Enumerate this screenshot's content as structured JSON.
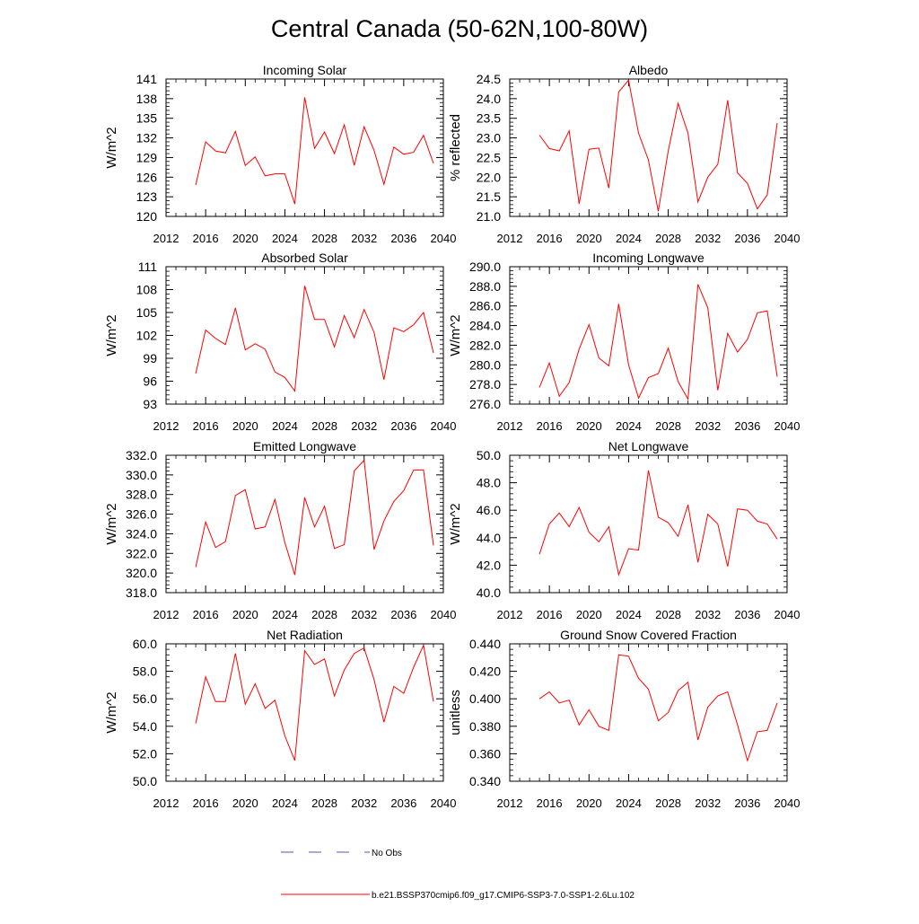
{
  "figure": {
    "title": "Central Canada (50-62N,100-80W)",
    "legend": [
      {
        "label": "No Obs",
        "color": "#5555aa",
        "style": "dashed"
      },
      {
        "label": "b.e21.BSSP370cmip6.f09_g17.CMIP6-SSP3-7.0-SSP1-2.6Lu.102",
        "color": "#ff0000",
        "style": "solid"
      }
    ]
  },
  "chart_data": [
    {
      "type": "line",
      "title": "Incoming Solar",
      "ylabel": "W/m^2",
      "xlim": [
        2012,
        2040
      ],
      "ylim": [
        120,
        141
      ],
      "xticks": [
        2012,
        2016,
        2020,
        2024,
        2028,
        2032,
        2036,
        2040
      ],
      "yticks": [
        120,
        123,
        126,
        129,
        132,
        135,
        138,
        141
      ],
      "ytick_labels": [
        "120",
        "123",
        "126",
        "129",
        "132",
        "135",
        "138",
        "141"
      ],
      "x": [
        2015,
        2016,
        2017,
        2018,
        2019,
        2020,
        2021,
        2022,
        2023,
        2024,
        2025,
        2026,
        2027,
        2028,
        2029,
        2030,
        2031,
        2032,
        2033,
        2034,
        2035,
        2036,
        2037,
        2038,
        2039
      ],
      "series": [
        {
          "color": "#ff0000",
          "values": [
            124.8,
            131.4,
            130.0,
            129.7,
            133.0,
            127.8,
            129.1,
            126.2,
            126.5,
            126.5,
            121.9,
            138.2,
            130.4,
            132.9,
            129.6,
            134.0,
            127.8,
            133.7,
            130.1,
            124.9,
            130.6,
            129.5,
            129.8,
            132.4,
            128.1
          ]
        }
      ]
    },
    {
      "type": "line",
      "title": "Albedo",
      "ylabel": "% reflected",
      "xlim": [
        2012,
        2040
      ],
      "ylim": [
        21.0,
        24.5
      ],
      "xticks": [
        2012,
        2016,
        2020,
        2024,
        2028,
        2032,
        2036,
        2040
      ],
      "yticks": [
        21.0,
        21.5,
        22.0,
        22.5,
        23.0,
        23.5,
        24.0,
        24.5
      ],
      "ytick_labels": [
        "21.0",
        "21.5",
        "22.0",
        "22.5",
        "23.0",
        "23.5",
        "24.0",
        "24.5"
      ],
      "x": [
        2015,
        2016,
        2017,
        2018,
        2019,
        2020,
        2021,
        2022,
        2023,
        2024,
        2025,
        2026,
        2027,
        2028,
        2029,
        2030,
        2031,
        2032,
        2033,
        2034,
        2035,
        2036,
        2037,
        2038,
        2039
      ],
      "series": [
        {
          "color": "#ff0000",
          "values": [
            23.07,
            22.73,
            22.67,
            23.18,
            21.32,
            22.71,
            22.74,
            21.72,
            24.17,
            24.47,
            23.12,
            22.44,
            21.13,
            22.67,
            23.88,
            23.12,
            21.37,
            22.0,
            22.33,
            23.96,
            22.11,
            21.84,
            21.19,
            21.55,
            23.38
          ]
        }
      ]
    },
    {
      "type": "line",
      "title": "Absorbed Solar",
      "ylabel": "W/m^2",
      "xlim": [
        2012,
        2040
      ],
      "ylim": [
        93,
        111
      ],
      "xticks": [
        2012,
        2016,
        2020,
        2024,
        2028,
        2032,
        2036,
        2040
      ],
      "yticks": [
        93,
        96,
        99,
        102,
        105,
        108,
        111
      ],
      "ytick_labels": [
        "93",
        "96",
        "99",
        "102",
        "105",
        "108",
        "111"
      ],
      "x": [
        2015,
        2016,
        2017,
        2018,
        2019,
        2020,
        2021,
        2022,
        2023,
        2024,
        2025,
        2026,
        2027,
        2028,
        2029,
        2030,
        2031,
        2032,
        2033,
        2034,
        2035,
        2036,
        2037,
        2038,
        2039
      ],
      "series": [
        {
          "color": "#ff0000",
          "values": [
            97.0,
            102.7,
            101.6,
            100.8,
            105.6,
            100.1,
            100.9,
            100.2,
            97.2,
            96.5,
            94.7,
            108.5,
            104.1,
            104.1,
            100.5,
            104.6,
            101.7,
            105.4,
            102.4,
            96.2,
            103.0,
            102.5,
            103.4,
            105.0,
            99.7
          ]
        }
      ]
    },
    {
      "type": "line",
      "title": "Incoming Longwave",
      "ylabel": "W/m^2",
      "xlim": [
        2012,
        2040
      ],
      "ylim": [
        276.0,
        290.0
      ],
      "xticks": [
        2012,
        2016,
        2020,
        2024,
        2028,
        2032,
        2036,
        2040
      ],
      "yticks": [
        276.0,
        278.0,
        280.0,
        282.0,
        284.0,
        286.0,
        288.0,
        290.0
      ],
      "ytick_labels": [
        "276.0",
        "278.0",
        "280.0",
        "282.0",
        "284.0",
        "286.0",
        "288.0",
        "290.0"
      ],
      "x": [
        2015,
        2016,
        2017,
        2018,
        2019,
        2020,
        2021,
        2022,
        2023,
        2024,
        2025,
        2026,
        2027,
        2028,
        2029,
        2030,
        2031,
        2032,
        2033,
        2034,
        2035,
        2036,
        2037,
        2038,
        2039
      ],
      "series": [
        {
          "color": "#ff0000",
          "values": [
            277.7,
            280.2,
            276.8,
            278.2,
            281.6,
            284.1,
            280.7,
            279.9,
            286.2,
            280.0,
            276.6,
            278.7,
            279.1,
            281.7,
            278.3,
            276.5,
            288.2,
            285.8,
            277.4,
            283.2,
            281.3,
            282.6,
            285.3,
            285.5,
            278.8
          ]
        }
      ]
    },
    {
      "type": "line",
      "title": "Emitted Longwave",
      "ylabel": "W/m^2",
      "xlim": [
        2012,
        2040
      ],
      "ylim": [
        318.0,
        332.0
      ],
      "xticks": [
        2012,
        2016,
        2020,
        2024,
        2028,
        2032,
        2036,
        2040
      ],
      "yticks": [
        318.0,
        320.0,
        322.0,
        324.0,
        326.0,
        328.0,
        330.0,
        332.0
      ],
      "ytick_labels": [
        "318.0",
        "320.0",
        "322.0",
        "324.0",
        "326.0",
        "328.0",
        "330.0",
        "332.0"
      ],
      "x": [
        2015,
        2016,
        2017,
        2018,
        2019,
        2020,
        2021,
        2022,
        2023,
        2024,
        2025,
        2026,
        2027,
        2028,
        2029,
        2030,
        2031,
        2032,
        2033,
        2034,
        2035,
        2036,
        2037,
        2038,
        2039
      ],
      "series": [
        {
          "color": "#ff0000",
          "values": [
            320.6,
            325.2,
            322.6,
            323.2,
            327.9,
            328.5,
            324.5,
            324.7,
            327.5,
            323.1,
            319.8,
            327.7,
            324.7,
            326.8,
            322.5,
            322.9,
            330.4,
            331.5,
            322.4,
            325.3,
            327.3,
            328.4,
            330.5,
            330.5,
            322.8
          ]
        }
      ]
    },
    {
      "type": "line",
      "title": "Net Longwave",
      "ylabel": "W/m^2",
      "xlim": [
        2012,
        2040
      ],
      "ylim": [
        40.0,
        50.0
      ],
      "xticks": [
        2012,
        2016,
        2020,
        2024,
        2028,
        2032,
        2036,
        2040
      ],
      "yticks": [
        40.0,
        42.0,
        44.0,
        46.0,
        48.0,
        50.0
      ],
      "ytick_labels": [
        "40.0",
        "42.0",
        "44.0",
        "46.0",
        "48.0",
        "50.0"
      ],
      "x": [
        2015,
        2016,
        2017,
        2018,
        2019,
        2020,
        2021,
        2022,
        2023,
        2024,
        2025,
        2026,
        2027,
        2028,
        2029,
        2030,
        2031,
        2032,
        2033,
        2034,
        2035,
        2036,
        2037,
        2038,
        2039
      ],
      "series": [
        {
          "color": "#ff0000",
          "values": [
            42.8,
            45.0,
            45.8,
            44.8,
            46.2,
            44.4,
            43.7,
            44.8,
            41.3,
            43.2,
            43.1,
            48.9,
            45.5,
            45.1,
            44.1,
            46.4,
            42.2,
            45.7,
            45.0,
            41.9,
            46.1,
            46.0,
            45.2,
            45.0,
            43.9
          ]
        }
      ]
    },
    {
      "type": "line",
      "title": "Net Radiation",
      "ylabel": "W/m^2",
      "xlim": [
        2012,
        2040
      ],
      "ylim": [
        50.0,
        60.0
      ],
      "xticks": [
        2012,
        2016,
        2020,
        2024,
        2028,
        2032,
        2036,
        2040
      ],
      "yticks": [
        50.0,
        52.0,
        54.0,
        56.0,
        58.0,
        60.0
      ],
      "ytick_labels": [
        "50.0",
        "52.0",
        "54.0",
        "56.0",
        "58.0",
        "60.0"
      ],
      "x": [
        2015,
        2016,
        2017,
        2018,
        2019,
        2020,
        2021,
        2022,
        2023,
        2024,
        2025,
        2026,
        2027,
        2028,
        2029,
        2030,
        2031,
        2032,
        2033,
        2034,
        2035,
        2036,
        2037,
        2038,
        2039
      ],
      "series": [
        {
          "color": "#ff0000",
          "values": [
            54.2,
            57.6,
            55.8,
            55.8,
            59.3,
            55.6,
            57.1,
            55.3,
            55.9,
            53.3,
            51.5,
            59.5,
            58.5,
            58.9,
            56.2,
            58.1,
            59.3,
            59.7,
            57.4,
            54.3,
            56.9,
            56.4,
            58.3,
            59.9,
            55.8
          ]
        }
      ]
    },
    {
      "type": "line",
      "title": "Ground Snow Covered Fraction",
      "ylabel": "unitless",
      "xlim": [
        2012,
        2040
      ],
      "ylim": [
        0.34,
        0.44
      ],
      "xticks": [
        2012,
        2016,
        2020,
        2024,
        2028,
        2032,
        2036,
        2040
      ],
      "yticks": [
        0.34,
        0.36,
        0.38,
        0.4,
        0.42,
        0.44
      ],
      "ytick_labels": [
        "0.340",
        "0.360",
        "0.380",
        "0.400",
        "0.420",
        "0.440"
      ],
      "x": [
        2015,
        2016,
        2017,
        2018,
        2019,
        2020,
        2021,
        2022,
        2023,
        2024,
        2025,
        2026,
        2027,
        2028,
        2029,
        2030,
        2031,
        2032,
        2033,
        2034,
        2035,
        2036,
        2037,
        2038,
        2039
      ],
      "series": [
        {
          "color": "#ff0000",
          "values": [
            0.4,
            0.405,
            0.397,
            0.399,
            0.381,
            0.392,
            0.38,
            0.377,
            0.432,
            0.431,
            0.415,
            0.407,
            0.384,
            0.39,
            0.406,
            0.412,
            0.37,
            0.394,
            0.402,
            0.405,
            0.381,
            0.355,
            0.376,
            0.377,
            0.397
          ]
        }
      ]
    }
  ]
}
